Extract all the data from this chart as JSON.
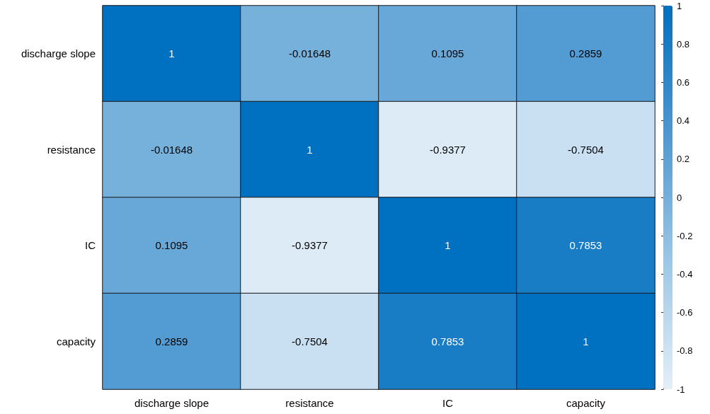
{
  "chart_data": {
    "type": "heatmap",
    "categories": [
      "discharge slope",
      "resistance",
      "IC",
      "capacity"
    ],
    "y_categories": [
      "discharge slope",
      "resistance",
      "IC",
      "capacity"
    ],
    "cells": [
      [
        1,
        -0.01648,
        0.1095,
        0.2859
      ],
      [
        -0.01648,
        1,
        -0.9377,
        -0.7504
      ],
      [
        0.1095,
        -0.9377,
        1,
        0.7853
      ],
      [
        0.2859,
        -0.7504,
        0.7853,
        1
      ]
    ],
    "clim": [
      -1,
      1
    ],
    "cticks": [
      -1,
      -0.8,
      -0.6,
      -0.4,
      -0.2,
      0,
      0.2,
      0.4,
      0.6,
      0.8,
      1
    ],
    "data_labels": true
  }
}
